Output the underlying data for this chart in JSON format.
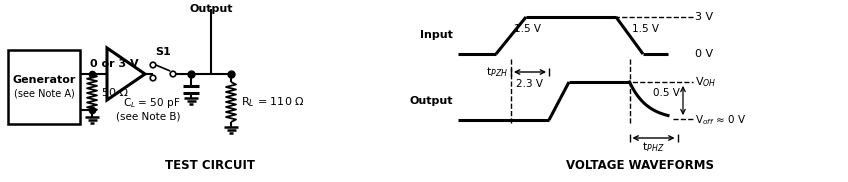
{
  "bg_color": "#ffffff",
  "line_color": "#000000",
  "fig_width": 8.48,
  "fig_height": 1.82,
  "dpi": 100,
  "test_circuit_label": "TEST CIRCUIT",
  "voltage_waveforms_label": "VOLTAGE WAVEFORMS",
  "input_label": "Input",
  "output_label": "Output",
  "output_top_label": "Output",
  "S1_label": "S1",
  "3V_label": "3 V",
  "0V_label": "0 V",
  "05V_label": "0.5 V",
  "15V_1_label": "1.5 V",
  "15V_2_label": "1.5 V",
  "23V_label": "2.3 V",
  "VOH_label": "V$_{OH}$",
  "Voff_label": "V$_{off}$ ≈ 0 V",
  "tPZH_label": "t$_{PZH}$",
  "tPHZ_label": "t$_{PHZ}$",
  "generator_line1": "Generator",
  "generator_line2": "(see Note A)",
  "50ohm_label": "50 Ω",
  "CL_label": "C$_L$ = 50 pF\n(see Note B)",
  "RL_label": "R$_L$ = 110 Ω",
  "input_signal_label": "0 or 3 V"
}
